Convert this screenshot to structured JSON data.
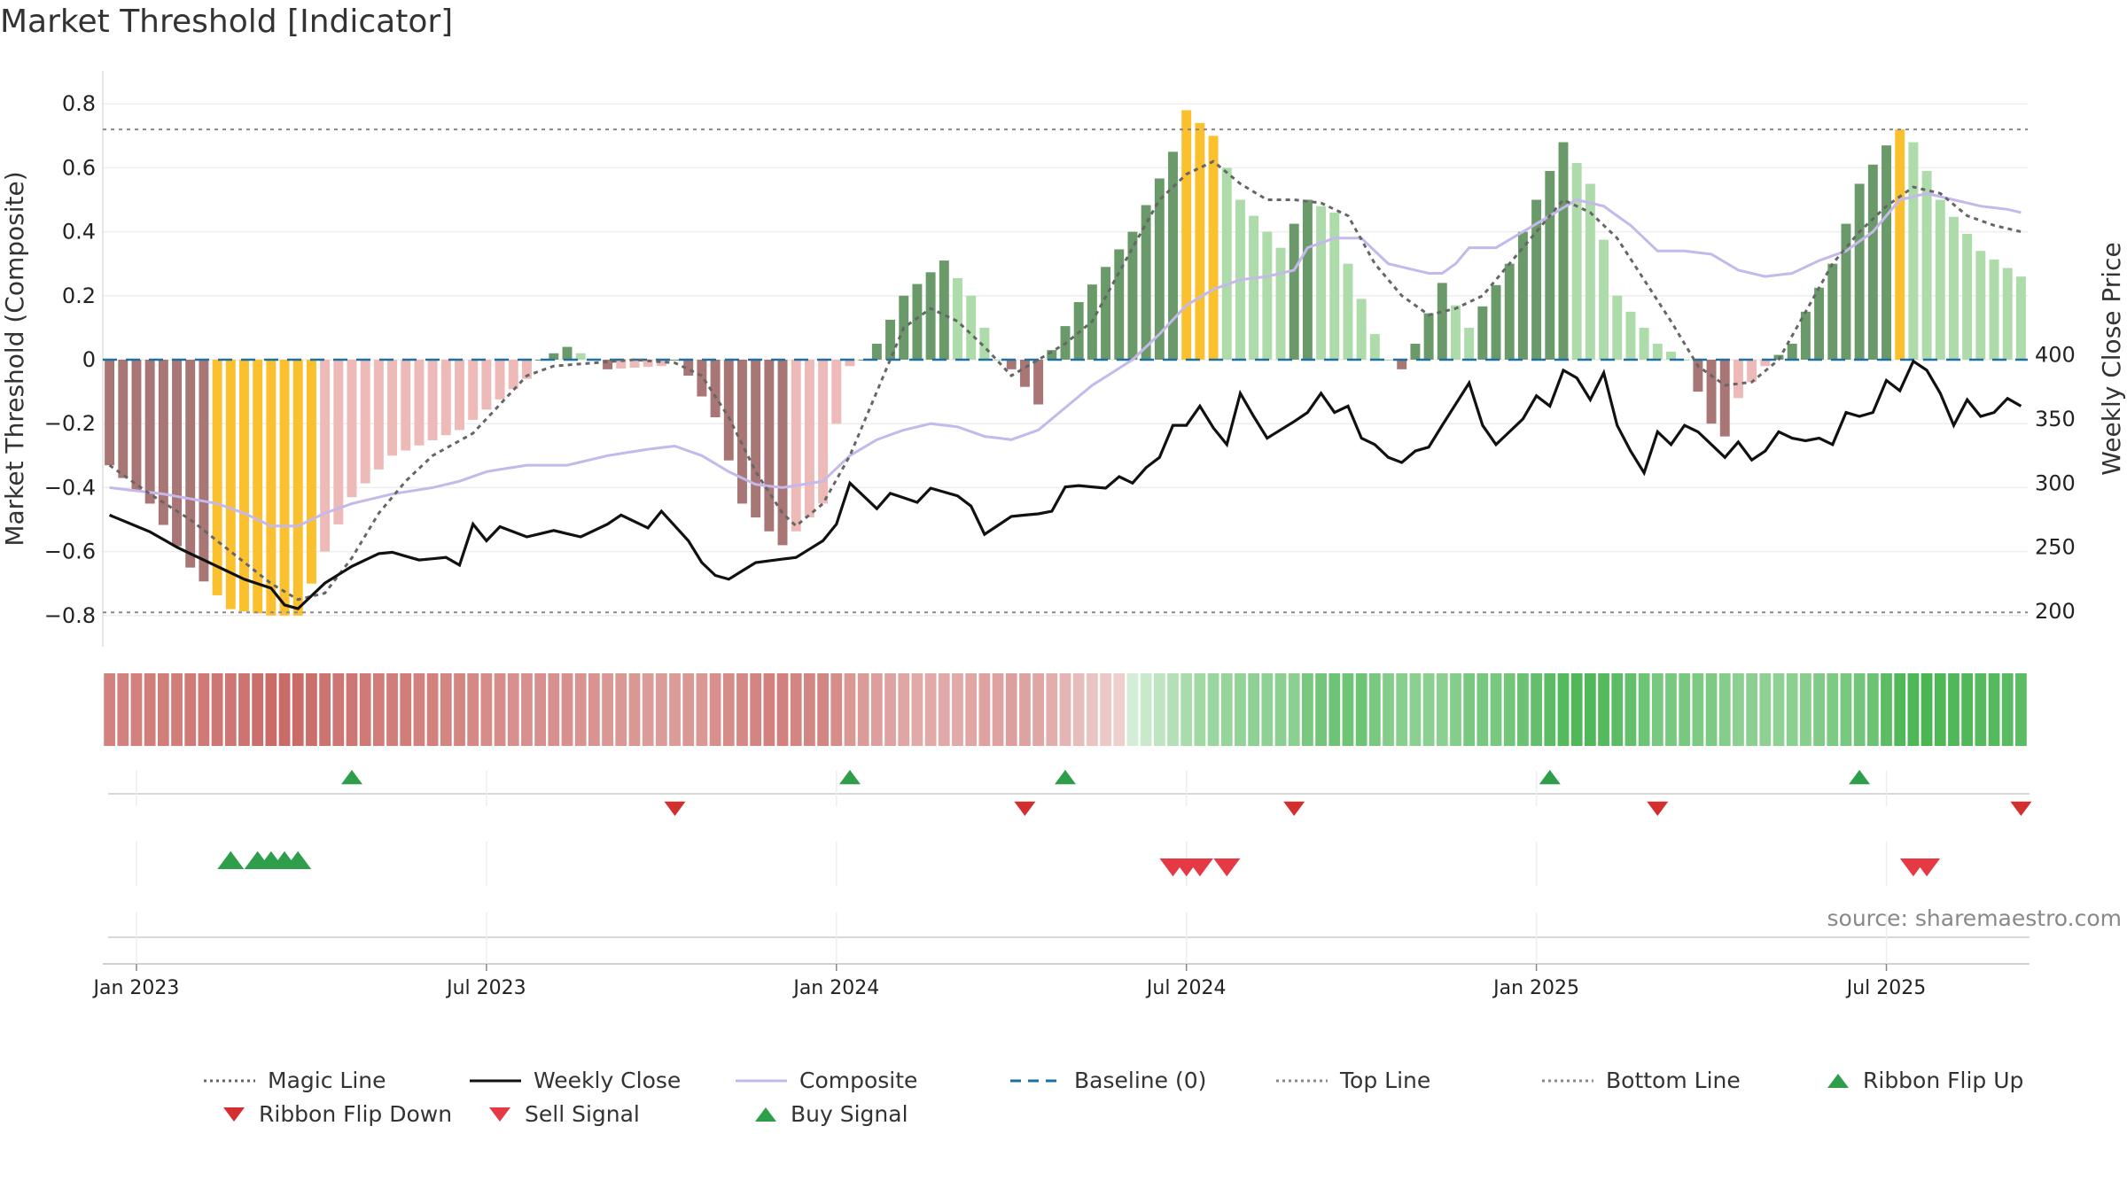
{
  "title": "Market Threshold [Indicator]",
  "source": "source: sharemaestro.com",
  "chart_data": {
    "type": "bar",
    "start_date": "2023-01-02",
    "weeks": 143,
    "y_left": {
      "label": "Market Threshold (Composite)",
      "ylim": [
        -0.9,
        0.9
      ],
      "ticks": [
        0.8,
        0.6,
        0.4,
        0.2,
        0,
        -0.2,
        -0.4,
        -0.6,
        -0.8
      ],
      "tick_labels": [
        "0.8",
        "0.6",
        "0.4",
        "0.2",
        "0",
        "−0.2",
        "−0.4",
        "−0.6",
        "−0.8"
      ]
    },
    "y_right": {
      "label": "Weekly Close Price",
      "ylim": [
        190,
        406
      ],
      "ticks": [
        400,
        350,
        300,
        250,
        200
      ],
      "tick_labels": [
        "400",
        "350",
        "300",
        "250",
        "200"
      ]
    },
    "x_ticks": [
      {
        "label": "Jan 2023",
        "week": 2
      },
      {
        "label": "Jul 2023",
        "week": 28
      },
      {
        "label": "Jan 2024",
        "week": 54
      },
      {
        "label": "Jul 2024",
        "week": 80
      },
      {
        "label": "Jan 2025",
        "week": 106
      },
      {
        "label": "Jul 2025",
        "week": 132
      }
    ],
    "top_line": 0.72,
    "bottom_line": -0.79,
    "anchors": {
      "composite_bars": [
        [
          0,
          -0.33
        ],
        [
          3,
          -0.45
        ],
        [
          6,
          -0.65
        ],
        [
          9,
          -0.78
        ],
        [
          12,
          -0.8
        ],
        [
          14,
          -0.8
        ],
        [
          16,
          -0.6
        ],
        [
          18,
          -0.43
        ],
        [
          21,
          -0.3
        ],
        [
          26,
          -0.22
        ],
        [
          31,
          -0.06
        ],
        [
          32,
          0.0
        ],
        [
          34,
          0.04
        ],
        [
          36,
          0.0
        ],
        [
          37,
          -0.03
        ],
        [
          41,
          -0.02
        ],
        [
          42,
          0.0
        ],
        [
          43,
          -0.05
        ],
        [
          45,
          -0.18
        ],
        [
          47,
          -0.45
        ],
        [
          50,
          -0.58
        ],
        [
          53,
          -0.45
        ],
        [
          54,
          -0.2
        ],
        [
          55,
          -0.02
        ],
        [
          56,
          0.0
        ],
        [
          57,
          0.05
        ],
        [
          59,
          0.2
        ],
        [
          62,
          0.31
        ],
        [
          64,
          0.2
        ],
        [
          66,
          0.0
        ],
        [
          67,
          -0.03
        ],
        [
          69,
          -0.14
        ],
        [
          70,
          0.03
        ],
        [
          72,
          0.18
        ],
        [
          76,
          0.4
        ],
        [
          79,
          0.65
        ],
        [
          80,
          0.78
        ],
        [
          82,
          0.7
        ],
        [
          84,
          0.5
        ],
        [
          87,
          0.35
        ],
        [
          89,
          0.5
        ],
        [
          91,
          0.46
        ],
        [
          92,
          0.3
        ],
        [
          94,
          0.08
        ],
        [
          95,
          0.0
        ],
        [
          96,
          -0.03
        ],
        [
          97,
          0.05
        ],
        [
          99,
          0.24
        ],
        [
          101,
          0.1
        ],
        [
          104,
          0.3
        ],
        [
          106,
          0.5
        ],
        [
          108,
          0.68
        ],
        [
          110,
          0.55
        ],
        [
          112,
          0.2
        ],
        [
          115,
          0.05
        ],
        [
          117,
          0.0
        ],
        [
          118,
          -0.1
        ],
        [
          119,
          -0.2
        ],
        [
          120,
          -0.24
        ],
        [
          121,
          -0.12
        ],
        [
          123,
          -0.02
        ],
        [
          125,
          0.05
        ],
        [
          126,
          0.15
        ],
        [
          128,
          0.3
        ],
        [
          130,
          0.55
        ],
        [
          132,
          0.67
        ],
        [
          133,
          0.72
        ],
        [
          134,
          0.68
        ],
        [
          136,
          0.5
        ],
        [
          139,
          0.34
        ],
        [
          142,
          0.26
        ]
      ],
      "close": [
        [
          0,
          275
        ],
        [
          3,
          262
        ],
        [
          5,
          250
        ],
        [
          7,
          240
        ],
        [
          10,
          225
        ],
        [
          12,
          218
        ],
        [
          13,
          205
        ],
        [
          14,
          202
        ],
        [
          16,
          222
        ],
        [
          18,
          235
        ],
        [
          20,
          245
        ],
        [
          21,
          246
        ],
        [
          23,
          240
        ],
        [
          25,
          242
        ],
        [
          26,
          236
        ],
        [
          27,
          268
        ],
        [
          28,
          255
        ],
        [
          29,
          266
        ],
        [
          31,
          258
        ],
        [
          33,
          263
        ],
        [
          35,
          258
        ],
        [
          37,
          268
        ],
        [
          38,
          275
        ],
        [
          40,
          265
        ],
        [
          41,
          278
        ],
        [
          43,
          255
        ],
        [
          44,
          238
        ],
        [
          45,
          228
        ],
        [
          46,
          225
        ],
        [
          48,
          238
        ],
        [
          51,
          242
        ],
        [
          53,
          255
        ],
        [
          54,
          268
        ],
        [
          55,
          300
        ],
        [
          56,
          290
        ],
        [
          57,
          280
        ],
        [
          58,
          292
        ],
        [
          60,
          285
        ],
        [
          61,
          296
        ],
        [
          63,
          290
        ],
        [
          64,
          282
        ],
        [
          65,
          260
        ],
        [
          67,
          274
        ],
        [
          69,
          276
        ],
        [
          70,
          278
        ],
        [
          71,
          297
        ],
        [
          72,
          298
        ],
        [
          74,
          296
        ],
        [
          75,
          305
        ],
        [
          76,
          300
        ],
        [
          77,
          312
        ],
        [
          78,
          320
        ],
        [
          79,
          345
        ],
        [
          80,
          345
        ],
        [
          81,
          360
        ],
        [
          82,
          343
        ],
        [
          83,
          330
        ],
        [
          84,
          370
        ],
        [
          85,
          352
        ],
        [
          86,
          335
        ],
        [
          88,
          348
        ],
        [
          89,
          355
        ],
        [
          90,
          370
        ],
        [
          91,
          355
        ],
        [
          92,
          360
        ],
        [
          93,
          335
        ],
        [
          94,
          330
        ],
        [
          95,
          320
        ],
        [
          96,
          316
        ],
        [
          97,
          325
        ],
        [
          98,
          328
        ],
        [
          99,
          345
        ],
        [
          101,
          378
        ],
        [
          102,
          345
        ],
        [
          103,
          330
        ],
        [
          105,
          350
        ],
        [
          106,
          368
        ],
        [
          107,
          360
        ],
        [
          108,
          388
        ],
        [
          109,
          382
        ],
        [
          110,
          365
        ],
        [
          111,
          386
        ],
        [
          112,
          345
        ],
        [
          113,
          325
        ],
        [
          114,
          308
        ],
        [
          115,
          340
        ],
        [
          116,
          330
        ],
        [
          117,
          345
        ],
        [
          118,
          340
        ],
        [
          119,
          330
        ],
        [
          120,
          320
        ],
        [
          121,
          332
        ],
        [
          122,
          318
        ],
        [
          123,
          325
        ],
        [
          124,
          340
        ],
        [
          125,
          335
        ],
        [
          126,
          333
        ],
        [
          127,
          335
        ],
        [
          128,
          330
        ],
        [
          129,
          355
        ],
        [
          130,
          352
        ],
        [
          131,
          355
        ],
        [
          132,
          380
        ],
        [
          133,
          372
        ],
        [
          134,
          395
        ],
        [
          135,
          388
        ],
        [
          136,
          370
        ],
        [
          137,
          345
        ],
        [
          138,
          365
        ],
        [
          139,
          352
        ],
        [
          140,
          355
        ],
        [
          141,
          366
        ],
        [
          142,
          360
        ]
      ],
      "composite_line": [
        [
          0,
          -0.4
        ],
        [
          4,
          -0.42
        ],
        [
          8,
          -0.45
        ],
        [
          10,
          -0.48
        ],
        [
          12,
          -0.52
        ],
        [
          14,
          -0.52
        ],
        [
          16,
          -0.48
        ],
        [
          18,
          -0.45
        ],
        [
          21,
          -0.42
        ],
        [
          24,
          -0.4
        ],
        [
          26,
          -0.38
        ],
        [
          28,
          -0.35
        ],
        [
          31,
          -0.33
        ],
        [
          34,
          -0.33
        ],
        [
          37,
          -0.3
        ],
        [
          40,
          -0.28
        ],
        [
          42,
          -0.27
        ],
        [
          44,
          -0.3
        ],
        [
          46,
          -0.35
        ],
        [
          48,
          -0.39
        ],
        [
          50,
          -0.4
        ],
        [
          53,
          -0.38
        ],
        [
          55,
          -0.3
        ],
        [
          57,
          -0.25
        ],
        [
          59,
          -0.22
        ],
        [
          61,
          -0.2
        ],
        [
          63,
          -0.21
        ],
        [
          65,
          -0.24
        ],
        [
          67,
          -0.25
        ],
        [
          69,
          -0.22
        ],
        [
          71,
          -0.15
        ],
        [
          73,
          -0.08
        ],
        [
          76,
          0.0
        ],
        [
          78,
          0.08
        ],
        [
          80,
          0.17
        ],
        [
          82,
          0.22
        ],
        [
          84,
          0.25
        ],
        [
          86,
          0.26
        ],
        [
          88,
          0.28
        ],
        [
          89,
          0.35
        ],
        [
          91,
          0.38
        ],
        [
          93,
          0.38
        ],
        [
          95,
          0.3
        ],
        [
          97,
          0.28
        ],
        [
          98,
          0.27
        ],
        [
          99,
          0.27
        ],
        [
          100,
          0.3
        ],
        [
          101,
          0.35
        ],
        [
          103,
          0.35
        ],
        [
          105,
          0.4
        ],
        [
          107,
          0.45
        ],
        [
          109,
          0.5
        ],
        [
          111,
          0.48
        ],
        [
          113,
          0.42
        ],
        [
          115,
          0.34
        ],
        [
          117,
          0.34
        ],
        [
          119,
          0.33
        ],
        [
          121,
          0.28
        ],
        [
          123,
          0.26
        ],
        [
          125,
          0.27
        ],
        [
          127,
          0.31
        ],
        [
          129,
          0.34
        ],
        [
          131,
          0.4
        ],
        [
          133,
          0.5
        ],
        [
          135,
          0.52
        ],
        [
          137,
          0.5
        ],
        [
          139,
          0.48
        ],
        [
          141,
          0.47
        ],
        [
          142,
          0.46
        ]
      ],
      "magic_line": [
        [
          0,
          -0.33
        ],
        [
          3,
          -0.42
        ],
        [
          6,
          -0.5
        ],
        [
          9,
          -0.6
        ],
        [
          12,
          -0.7
        ],
        [
          14,
          -0.75
        ],
        [
          16,
          -0.73
        ],
        [
          18,
          -0.62
        ],
        [
          20,
          -0.48
        ],
        [
          22,
          -0.38
        ],
        [
          24,
          -0.3
        ],
        [
          27,
          -0.23
        ],
        [
          29,
          -0.14
        ],
        [
          31,
          -0.05
        ],
        [
          33,
          -0.02
        ],
        [
          36,
          -0.01
        ],
        [
          39,
          0.0
        ],
        [
          42,
          -0.01
        ],
        [
          44,
          -0.05
        ],
        [
          46,
          -0.18
        ],
        [
          48,
          -0.35
        ],
        [
          50,
          -0.48
        ],
        [
          51,
          -0.52
        ],
        [
          53,
          -0.45
        ],
        [
          55,
          -0.3
        ],
        [
          57,
          -0.1
        ],
        [
          59,
          0.1
        ],
        [
          61,
          0.16
        ],
        [
          63,
          0.12
        ],
        [
          65,
          0.04
        ],
        [
          67,
          -0.05
        ],
        [
          69,
          0.0
        ],
        [
          71,
          0.05
        ],
        [
          73,
          0.12
        ],
        [
          76,
          0.35
        ],
        [
          78,
          0.5
        ],
        [
          80,
          0.58
        ],
        [
          82,
          0.62
        ],
        [
          84,
          0.55
        ],
        [
          86,
          0.5
        ],
        [
          88,
          0.5
        ],
        [
          90,
          0.49
        ],
        [
          92,
          0.45
        ],
        [
          94,
          0.3
        ],
        [
          96,
          0.2
        ],
        [
          98,
          0.14
        ],
        [
          100,
          0.16
        ],
        [
          102,
          0.2
        ],
        [
          104,
          0.3
        ],
        [
          106,
          0.4
        ],
        [
          108,
          0.5
        ],
        [
          110,
          0.46
        ],
        [
          112,
          0.38
        ],
        [
          114,
          0.25
        ],
        [
          116,
          0.12
        ],
        [
          118,
          -0.02
        ],
        [
          120,
          -0.08
        ],
        [
          122,
          -0.07
        ],
        [
          124,
          0.0
        ],
        [
          126,
          0.15
        ],
        [
          128,
          0.3
        ],
        [
          130,
          0.4
        ],
        [
          132,
          0.48
        ],
        [
          134,
          0.54
        ],
        [
          136,
          0.52
        ],
        [
          138,
          0.45
        ],
        [
          140,
          0.42
        ],
        [
          142,
          0.4
        ]
      ]
    },
    "ribbon_flip_up_weeks": [
      18,
      55,
      71,
      107,
      130
    ],
    "ribbon_flip_down_weeks": [
      42,
      68,
      88,
      115,
      142
    ],
    "buy_signal_weeks": [
      9,
      11,
      12,
      13,
      14
    ],
    "sell_signal_weeks": [
      79,
      80,
      81,
      83,
      134,
      135
    ],
    "colors": {
      "bar_neg_dark": "#a87674",
      "bar_neg_light": "#edbab8",
      "bar_pos_dark": "#6a9a69",
      "bar_pos_light": "#aedbaa",
      "bar_extreme": "#fbc02d",
      "close": "#111111",
      "composite": "#c5b8ea",
      "magic": "#666666",
      "baseline": "#1f6fa0",
      "threshold": "#888888",
      "flip_up": "#2e9e4a",
      "flip_down": "#d32f2f",
      "buy": "#2e9e4a",
      "sell": "#e53945"
    }
  },
  "legend": [
    {
      "label": "Magic Line",
      "icon": "dotted-line"
    },
    {
      "label": "Weekly Close",
      "icon": "solid-line"
    },
    {
      "label": "Composite",
      "icon": "light-line"
    },
    {
      "label": "Baseline (0)",
      "icon": "dashed-line"
    },
    {
      "label": "Top Line",
      "icon": "dotted-line"
    },
    {
      "label": "Bottom Line",
      "icon": "dotted-line"
    },
    {
      "label": "Ribbon Flip Up",
      "icon": "triangle-up"
    },
    {
      "label": "Ribbon Flip Down",
      "icon": "triangle-down"
    },
    {
      "label": "Sell Signal",
      "icon": "triangle-down"
    },
    {
      "label": "Buy Signal",
      "icon": "triangle-up"
    }
  ]
}
